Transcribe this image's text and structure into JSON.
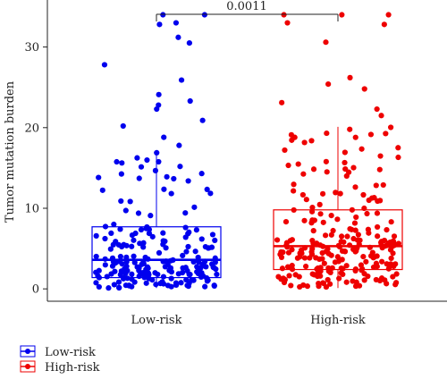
{
  "chart_data": {
    "type": "box",
    "title": "",
    "xlabel": "",
    "ylabel": "Tumor mutation burden",
    "categories": [
      "Low-risk",
      "High-risk"
    ],
    "ylim": [
      -1.2,
      35.5
    ],
    "yticks": [
      0,
      10,
      20,
      30
    ],
    "grid": false,
    "legend_position": "bottom-left",
    "comparison": {
      "label": "0.0011",
      "between": [
        "Low-risk",
        "High-risk"
      ]
    },
    "series": [
      {
        "name": "Low-risk",
        "color": "#0000ee",
        "box": {
          "min": 0.1,
          "q1": 1.4,
          "median": 3.6,
          "q3": 7.7,
          "max": 17.0
        },
        "jitter_points": 210,
        "outliers": [
          17.8,
          18.8,
          20.2,
          20.9,
          22.3,
          22.8,
          23.3,
          24.1,
          25.9,
          27.8,
          30.5,
          31.2,
          32.8,
          33.0,
          34.0,
          34.0
        ]
      },
      {
        "name": "High-risk",
        "color": "#ee0000",
        "box": {
          "min": 0.1,
          "q1": 2.4,
          "median": 5.3,
          "q3": 9.8,
          "max": 20.1
        },
        "jitter_points": 240,
        "outliers": [
          21.5,
          22.3,
          23.1,
          24.8,
          25.4,
          26.2,
          30.6,
          32.8,
          33.0,
          34.0,
          34.0,
          34.0
        ]
      }
    ]
  }
}
